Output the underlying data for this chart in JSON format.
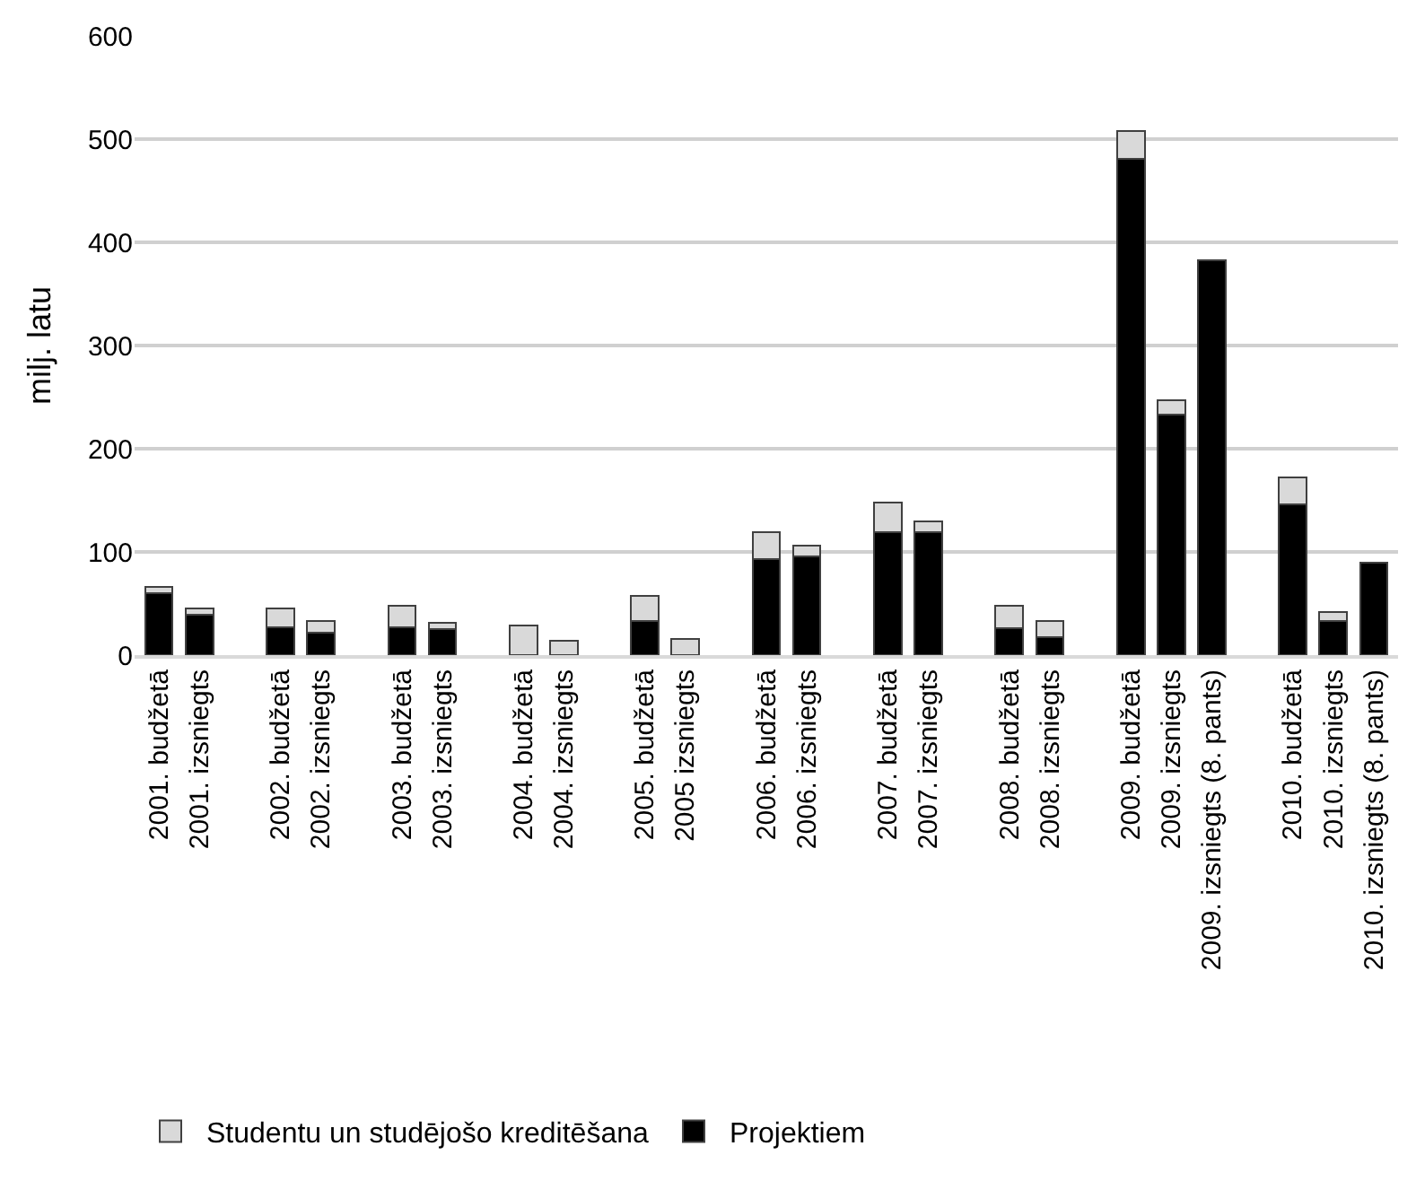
{
  "chart_data": {
    "type": "bar",
    "stacked": true,
    "ylabel": "milj. latu",
    "ylim": [
      0,
      600
    ],
    "yticks": [
      0,
      100,
      200,
      300,
      400,
      500,
      600
    ],
    "grid": "y",
    "legend": "bottom left",
    "categories": [
      "2001. budžetā",
      "2001. izsniegts",
      null,
      "2002. budžetā",
      "2002. izsniegts",
      null,
      "2003. budžetā",
      "2003. izsniegts",
      null,
      "2004. budžetā",
      "2004. izsniegts",
      null,
      "2005. budžetā",
      "2005 izsniegts",
      null,
      "2006. budžetā",
      "2006. izsniegts",
      null,
      "2007. budžetā",
      "2007. izsniegts",
      null,
      "2008. budžetā",
      "2008. izsniegts",
      null,
      "2009. budžetā",
      "2009. izsniegts",
      "2009. izsniegts (8. pants)",
      null,
      "2010. budžetā",
      "2010. izsniegts",
      "2010. izsniegts (8. pants)"
    ],
    "series": [
      {
        "name": "Projektiem",
        "color": "#000000",
        "values": [
          60,
          39,
          null,
          27,
          22,
          null,
          27,
          25,
          null,
          null,
          null,
          null,
          33,
          null,
          null,
          93,
          96,
          null,
          119,
          119,
          null,
          26,
          17,
          null,
          481,
          233,
          383,
          null,
          146,
          33,
          90
        ]
      },
      {
        "name": "Studentu un studējošo kreditēšana",
        "color": "#d9d9d9",
        "values": [
          6,
          6,
          null,
          18,
          11,
          null,
          21,
          6,
          null,
          29,
          14,
          null,
          24,
          16,
          null,
          26,
          10,
          null,
          29,
          11,
          null,
          22,
          16,
          null,
          27,
          14,
          null,
          null,
          26,
          9,
          null
        ]
      }
    ]
  }
}
